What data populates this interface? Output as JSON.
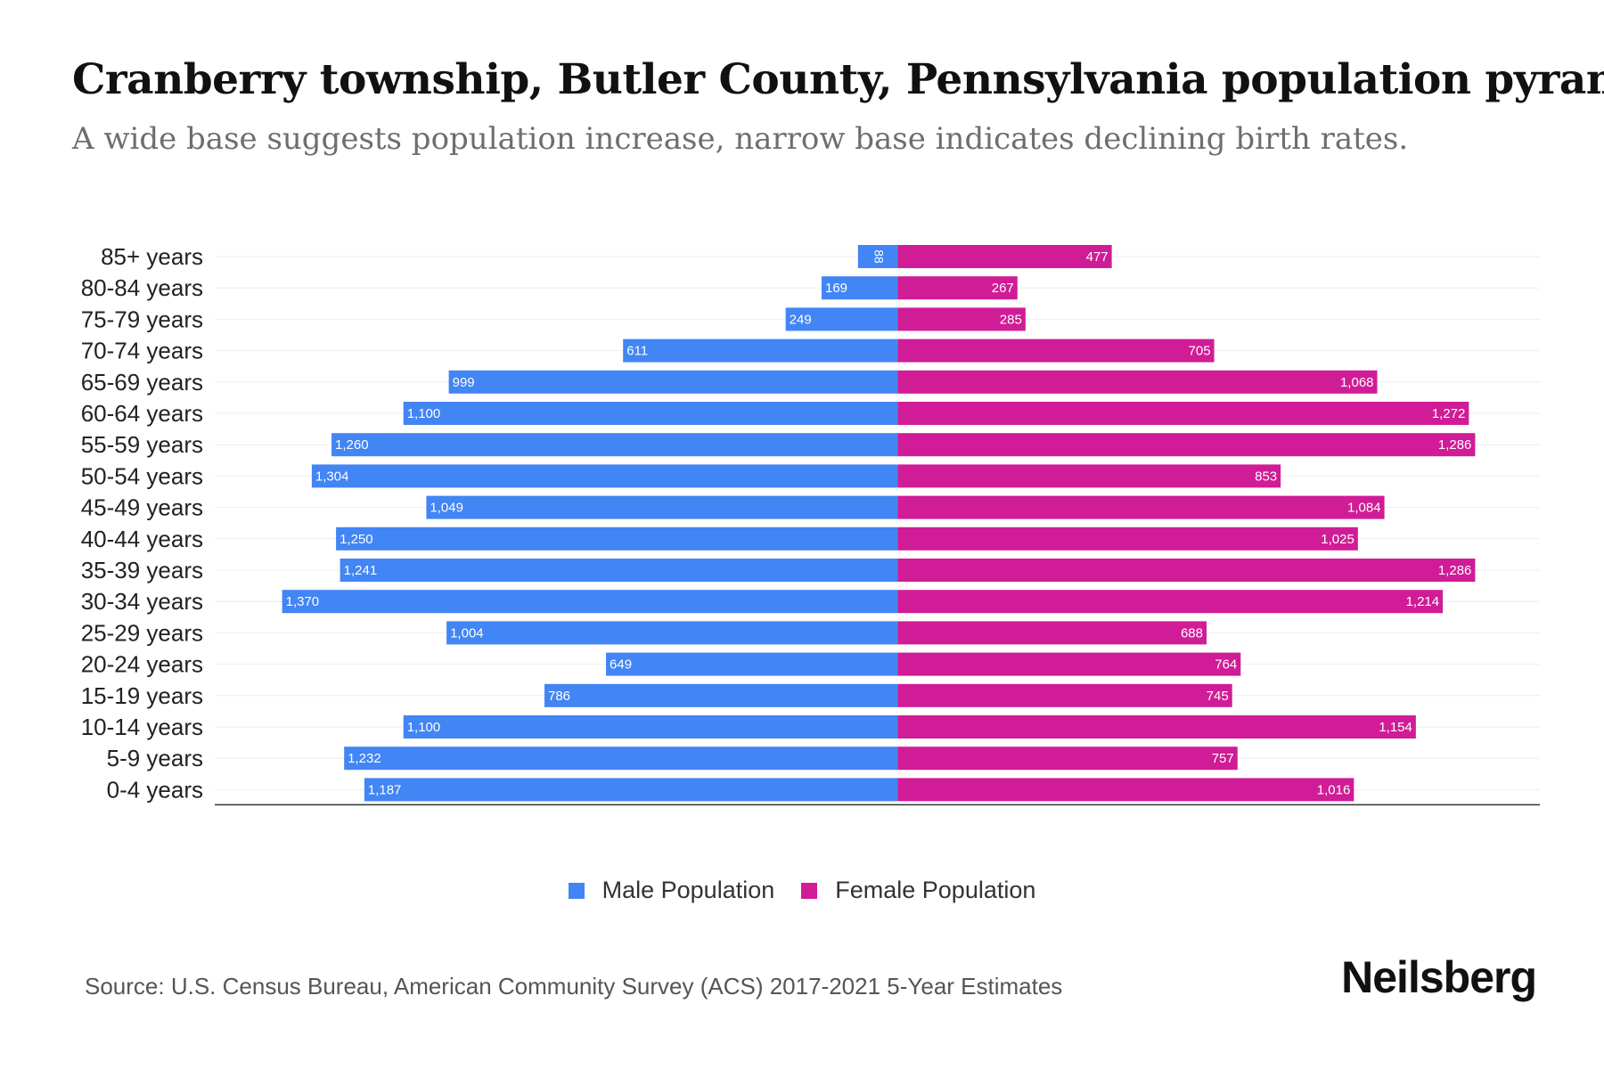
{
  "header": {
    "title": "Cranberry township, Butler County, Pennsylvania population pyramid",
    "subtitle": "A wide base suggests population increase, narrow base indicates declining birth rates."
  },
  "chart_data": {
    "type": "bar",
    "orientation": "horizontal-pyramid",
    "categories": [
      "85+ years",
      "80-84 years",
      "75-79 years",
      "70-74 years",
      "65-69 years",
      "60-64 years",
      "55-59 years",
      "50-54 years",
      "45-49 years",
      "40-44 years",
      "35-39 years",
      "30-34 years",
      "25-29 years",
      "20-24 years",
      "15-19 years",
      "10-14 years",
      "5-9 years",
      "0-4 years"
    ],
    "series": [
      {
        "name": "Male Population",
        "color": "#4285f4",
        "values": [
          88,
          169,
          249,
          611,
          999,
          1100,
          1260,
          1304,
          1049,
          1250,
          1241,
          1370,
          1004,
          649,
          786,
          1100,
          1232,
          1187
        ],
        "labels": [
          "88",
          "169",
          "249",
          "611",
          "999",
          "1,100",
          "1,260",
          "1,304",
          "1,049",
          "1,250",
          "1,241",
          "1,370",
          "1,004",
          "649",
          "786",
          "1,100",
          "1,232",
          "1,187"
        ]
      },
      {
        "name": "Female Population",
        "color": "#d01c96",
        "values": [
          477,
          267,
          285,
          705,
          1068,
          1272,
          1286,
          853,
          1084,
          1025,
          1286,
          1214,
          688,
          764,
          745,
          1154,
          757,
          1016
        ],
        "labels": [
          "477",
          "267",
          "285",
          "705",
          "1,068",
          "1,272",
          "1,286",
          "853",
          "1,084",
          "1,025",
          "1,286",
          "1,214",
          "688",
          "764",
          "745",
          "1,154",
          "757",
          "1,016"
        ]
      }
    ],
    "xlim": [
      -1520,
      1430
    ],
    "grid": true,
    "legend": "bottom-center"
  },
  "legend": {
    "male_label": "Male Population",
    "female_label": "Female Population",
    "male_color": "#4285f4",
    "female_color": "#d01c96"
  },
  "footer": {
    "source": "Source: U.S. Census Bureau, American Community Survey (ACS) 2017-2021 5-Year Estimates",
    "brand": "Neilsberg"
  }
}
